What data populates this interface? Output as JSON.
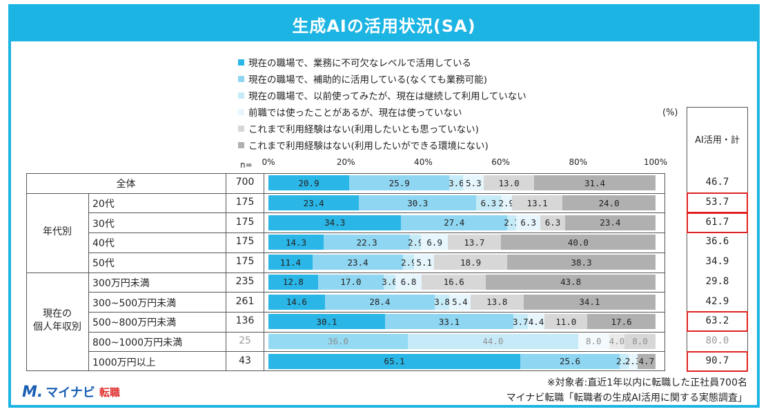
{
  "title": "生成AIの活用状況(SA)",
  "unit": "(%)",
  "n_label": "n=",
  "ai_total_header": "AI活用・計",
  "legend": [
    {
      "label": "■現在の職場で、業務に不可欠なレベルで活用している",
      "color": "#2ab6e6"
    },
    {
      "label": "■現在の職場で、補助的に活用している(なくても業務可能)",
      "color": "#8fd6f2"
    },
    {
      "label": "■現在の職場で、以前使ってみたが、現在は継続して利用していない",
      "color": "#c6ebf8"
    },
    {
      "label": "■前職では使ったことがあるが、現在は使っていない",
      "color": "#e6f6fc"
    },
    {
      "label": "■これまで利用経験はない(利用したいとも思っていない)",
      "color": "#d7d7d7"
    },
    {
      "label": "■これまで利用経験はない(利用したいができる環境にない)",
      "color": "#b0b0b0"
    }
  ],
  "chart_data": {
    "type": "bar",
    "orientation": "horizontal-stacked-100",
    "x_ticks": [
      "0%",
      "20%",
      "40%",
      "60%",
      "80%",
      "100%"
    ],
    "xlim": [
      0,
      100
    ],
    "series_names": [
      "現在の職場で、業務に不可欠なレベルで活用している",
      "現在の職場で、補助的に活用している(なくても業務可能)",
      "現在の職場で、以前使ってみたが、現在は継続して利用していない",
      "前職では使ったことがあるが、現在は使っていない",
      "これまで利用経験はない(利用したいとも思っていない)",
      "これまで利用経験はない(利用したいができる環境にない)"
    ],
    "groups": [
      "年代別",
      "現在の\n個人年収別"
    ],
    "rows": [
      {
        "label": "全体",
        "n": "700",
        "values": [
          20.9,
          25.9,
          3.6,
          5.3,
          13.0,
          31.4
        ],
        "labels": [
          "20.9",
          "25.9",
          "3.6",
          "5.3",
          "13.0",
          "31.4"
        ],
        "ai_total": "46.7",
        "highlight": false,
        "faded": false
      },
      {
        "label": "20代",
        "n": "175",
        "values": [
          23.4,
          30.3,
          6.3,
          2.9,
          13.1,
          24.0
        ],
        "labels": [
          "23.4",
          "30.3",
          "6.3",
          "2.9",
          "13.1",
          "24.0"
        ],
        "ai_total": "53.7",
        "highlight": true,
        "faded": false
      },
      {
        "label": "30代",
        "n": "175",
        "values": [
          34.3,
          27.4,
          2.3,
          6.3,
          6.3,
          23.4
        ],
        "labels": [
          "34.3",
          "27.4",
          "2.3",
          "6.3",
          "6.3",
          "23.4"
        ],
        "ai_total": "61.7",
        "highlight": true,
        "faded": false
      },
      {
        "label": "40代",
        "n": "175",
        "values": [
          14.3,
          22.3,
          2.9,
          6.9,
          13.7,
          40.0
        ],
        "labels": [
          "14.3",
          "22.3",
          "2.9",
          "6.9",
          "13.7",
          "40.0"
        ],
        "ai_total": "36.6",
        "highlight": false,
        "faded": false
      },
      {
        "label": "50代",
        "n": "175",
        "values": [
          11.4,
          23.4,
          2.9,
          5.1,
          18.9,
          38.3
        ],
        "labels": [
          "11.4",
          "23.4",
          "2.9",
          "5.1",
          "18.9",
          "38.3"
        ],
        "ai_total": "34.9",
        "highlight": false,
        "faded": false
      },
      {
        "label": "300万円未満",
        "n": "235",
        "values": [
          12.8,
          17.0,
          3.0,
          6.8,
          16.6,
          43.8
        ],
        "labels": [
          "12.8",
          "17.0",
          "3.0",
          "6.8",
          "16.6",
          "43.8"
        ],
        "ai_total": "29.8",
        "highlight": false,
        "faded": false
      },
      {
        "label": "300~500万円未満",
        "n": "261",
        "values": [
          14.6,
          28.4,
          3.8,
          5.4,
          13.8,
          34.1
        ],
        "labels": [
          "14.6",
          "28.4",
          "3.8",
          "5.4",
          "13.8",
          "34.1"
        ],
        "ai_total": "42.9",
        "highlight": false,
        "faded": false
      },
      {
        "label": "500~800万円未満",
        "n": "136",
        "values": [
          30.1,
          33.1,
          3.7,
          4.4,
          11.0,
          17.6
        ],
        "labels": [
          "30.1",
          "33.1",
          "3.7",
          "4.4",
          "11.0",
          "17.6"
        ],
        "ai_total": "63.2",
        "highlight": true,
        "faded": false
      },
      {
        "label": "800~1000万円未満",
        "n": "25",
        "values": [
          36.0,
          44.0,
          0.0,
          8.0,
          4.0,
          8.0
        ],
        "labels": [
          "36.0",
          "44.0",
          "",
          "8.0",
          "4.0",
          "8.0"
        ],
        "ai_total": "80.0",
        "highlight": false,
        "faded": true
      },
      {
        "label": "1000万円以上",
        "n": "43",
        "values": [
          65.1,
          25.6,
          2.3,
          2.3,
          0.0,
          4.7
        ],
        "labels": [
          "65.1",
          "25.6",
          "2.3",
          "2.3",
          "",
          "4.7"
        ],
        "ai_total": "90.7",
        "highlight": true,
        "faded": false
      }
    ]
  },
  "footnote_1": "※対象者:直近1年以内に転職した正社員700名",
  "footnote_2": "マイナビ転職「転職者の生成AI活用に関する実態調査」",
  "logo": {
    "mark": "M.",
    "text": "マイナビ",
    "sub": "転職"
  }
}
